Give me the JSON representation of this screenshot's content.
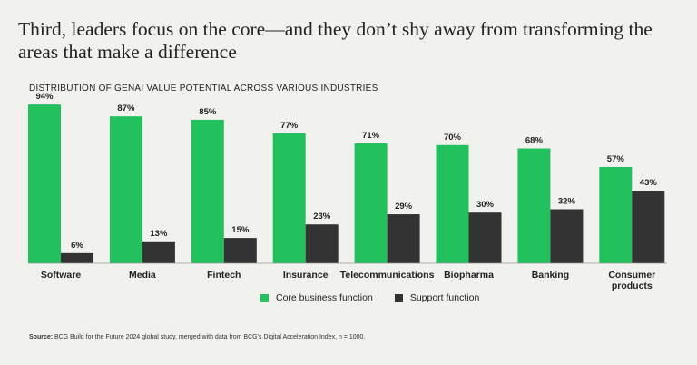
{
  "title": "Third, leaders focus on the core—and they don’t shy away from transforming the areas that make a difference",
  "colors": {
    "core": "#22c15e",
    "support": "#333333",
    "baseline": "#999999",
    "background": "#f1f1ee"
  },
  "chart_data": {
    "type": "bar",
    "title": "DISTRIBUTION OF GENAI VALUE POTENTIAL ACROSS VARIOUS INDUSTRIES",
    "categories": [
      "Software",
      "Media",
      "Fintech",
      "Insurance",
      "Telecommunications",
      "Biopharma",
      "Banking",
      "Consumer\nproducts"
    ],
    "series": [
      {
        "name": "Core business function",
        "color": "#22c15e",
        "values": [
          94,
          87,
          85,
          77,
          71,
          70,
          68,
          57
        ]
      },
      {
        "name": "Support function",
        "color": "#333333",
        "values": [
          6,
          13,
          15,
          23,
          29,
          30,
          32,
          43
        ]
      }
    ],
    "value_suffix": "%",
    "ylim": [
      0,
      100
    ],
    "xlabel": "",
    "ylabel": "",
    "grid": false,
    "legend": "bottom-center"
  },
  "source": {
    "label": "Source:",
    "text": "BCG Build for the Future 2024 global study, merged with data from BCG’s Digital Acceleration Index, n = 1000."
  }
}
